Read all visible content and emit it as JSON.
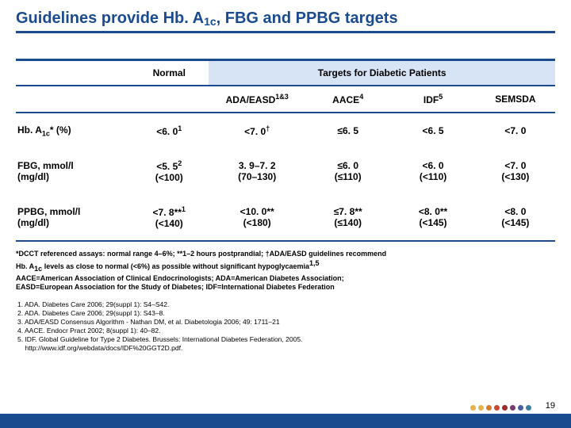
{
  "title_prefix": "Guidelines provide Hb. A",
  "title_sub": "1c",
  "title_suffix": ", FBG and PPBG targets",
  "header": {
    "normal": "Normal",
    "targets": "Targets for Diabetic Patients",
    "ada": "ADA/EASD",
    "ada_sup": "1&3",
    "aace": "AACE",
    "aace_sup": "4",
    "idf": "IDF",
    "idf_sup": "5",
    "semsda": "SEMSDA"
  },
  "rows": {
    "r1": {
      "label_pre": "Hb. A",
      "label_sub": "1c",
      "label_post": "* (%)",
      "normal": "<6. 0",
      "normal_sup": "1",
      "ada": "<7. 0",
      "ada_sup": "†",
      "aace": "≤6. 5",
      "idf": "<6. 5",
      "sem": "<7. 0"
    },
    "r2": {
      "label_l1": "FBG, mmol/l",
      "label_l2": "(mg/dl)",
      "normal_l1": "<5. 5",
      "normal_sup": "2",
      "normal_l2": "(<100)",
      "ada_l1": "3. 9–7. 2",
      "ada_l2": "(70–130)",
      "aace_l1": "≤6. 0",
      "aace_l2": "(≤110)",
      "idf_l1": "<6. 0",
      "idf_l2": "(<110)",
      "sem_l1": "<7. 0",
      "sem_l2": "(<130)"
    },
    "r3": {
      "label_l1": "PPBG, mmol/l",
      "label_l2": "(mg/dl)",
      "normal_l1": "<7. 8**",
      "normal_sup": "1",
      "normal_l2": "(<140)",
      "ada_l1": "<10. 0**",
      "ada_l2": "(<180)",
      "aace_l1": "≤7. 8**",
      "aace_l2": "(≤140)",
      "idf_l1": "<8. 0**",
      "idf_l2": "(<145)",
      "sem_l1": "<8. 0",
      "sem_l2": "(<145)"
    }
  },
  "footnotes": {
    "f1_pre": "*DCCT referenced assays: normal range 4–6%; **1–2 hours postprandial; ",
    "f1_dag": "†",
    "f1_post": "ADA/EASD guidelines recommend ",
    "f2_pre": "Hb. A",
    "f2_sub": "1c",
    "f2_mid": " levels as close to normal (<6%) as possible without significant hypoglycaemia",
    "f2_sup": "1,5",
    "f3": "AACE=American Association of Clinical Endocrinologists; ADA=American Diabetes Association;",
    "f4": "EASD=European Association for the Study of Diabetes; IDF=International Diabetes Federation"
  },
  "refs": {
    "r1": "1. ADA. Diabetes Care 2006; 29(suppl 1): S4–S42.",
    "r2": "2. ADA. Diabetes Care 2006; 29(suppl 1): S43–8.",
    "r3": "3. ADA/EASD Consensus Algorithm - Nathan DM, et al. Diabetologia 2006; 49: 1711–21",
    "r4": "4. AACE. Endocr Pract 2002; 8(suppl 1): 40–82.",
    "r5": "5. IDF. Global Guideline for Type 2 Diabetes. Brussels: International Diabetes Federation, 2005.",
    "r6": "    http://www.idf.org/webdata/docs/IDF%20GGT2D.pdf."
  },
  "pagenum": "19",
  "dot_colors": [
    "#e8b14a",
    "#e8b14a",
    "#d97b2e",
    "#c74a2e",
    "#9e2b2b",
    "#7a3b6b",
    "#4a5fa0",
    "#3a7fa0"
  ]
}
